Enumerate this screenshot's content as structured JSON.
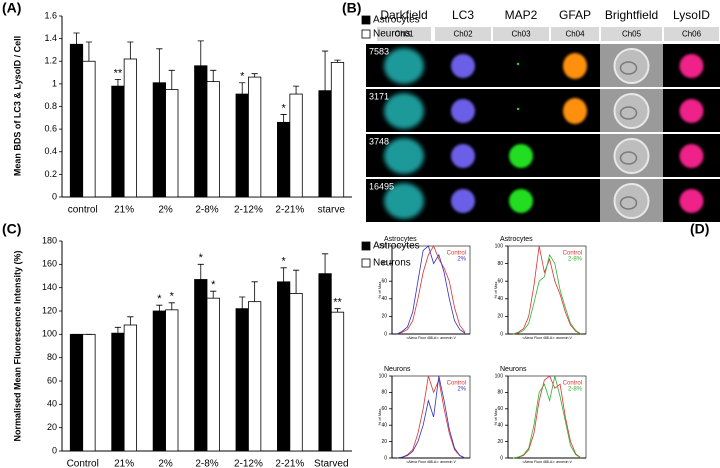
{
  "panel_labels": [
    "(A)",
    "(B)",
    "(C)",
    "(D)"
  ],
  "image_panel": {
    "columns": [
      "Darkfield",
      "LC3",
      "MAP2",
      "GFAP",
      "Brightfield",
      "LysoID"
    ],
    "channels": [
      "Ch01",
      "Ch02",
      "Ch03",
      "Ch04",
      "Ch05",
      "Ch06"
    ],
    "rows": [
      "7583",
      "3171",
      "3748",
      "16495"
    ]
  },
  "chart_data": [
    {
      "type": "bar",
      "ylabel": "Mean BDS of LC3 & LysoID / Cell",
      "categories": [
        "control",
        "21%",
        "2%",
        "2-8%",
        "2-12%",
        "2-21%",
        "starve"
      ],
      "series": [
        {
          "name": "Astrocytes",
          "color": "#000000",
          "values": [
            1.35,
            0.98,
            1.01,
            1.16,
            0.91,
            0.66,
            0.94
          ],
          "errors": [
            0.1,
            0.06,
            0.3,
            0.22,
            0.1,
            0.07,
            0.35
          ],
          "significance": [
            null,
            "**",
            null,
            null,
            "*",
            "*",
            null
          ]
        },
        {
          "name": "Neurons",
          "color": "#ffffff",
          "values": [
            1.2,
            1.22,
            0.95,
            1.02,
            1.06,
            0.91,
            1.19
          ],
          "errors": [
            0.17,
            0.15,
            0.17,
            0.1,
            0.03,
            0.07,
            0.02
          ],
          "significance": [
            null,
            null,
            null,
            null,
            null,
            null,
            null
          ]
        }
      ],
      "ylim": [
        0,
        1.6
      ],
      "yticks": [
        0,
        0.2,
        0.4,
        0.6,
        0.8,
        1,
        1.2,
        1.4,
        1.6
      ]
    },
    {
      "type": "bar",
      "ylabel": "Normalised Mean Fluorescence Intensity (%)",
      "categories": [
        "Control",
        "21%",
        "2%",
        "2-8%",
        "2-12%",
        "2-21%",
        "Starved"
      ],
      "series": [
        {
          "name": "Astrocytes",
          "color": "#000000",
          "values": [
            100,
            101,
            120,
            147,
            122,
            145,
            152
          ],
          "errors": [
            0,
            5,
            5,
            13,
            10,
            12,
            17
          ],
          "significance": [
            null,
            null,
            "*",
            "*",
            null,
            "*",
            null
          ]
        },
        {
          "name": "Neurons",
          "color": "#ffffff",
          "values": [
            100,
            108,
            121,
            131,
            128,
            135,
            119
          ],
          "errors": [
            0,
            7,
            6,
            6,
            17,
            20,
            3
          ],
          "significance": [
            null,
            null,
            "*",
            "*",
            null,
            null,
            "**"
          ]
        }
      ],
      "ylim": [
        0,
        180
      ],
      "yticks": [
        0,
        20,
        40,
        60,
        80,
        100,
        120,
        140,
        160,
        180
      ]
    },
    {
      "type": "line",
      "title": "Astrocytes",
      "ylabel": "% of Max",
      "xlabel": "<Alexa Fluor 488-A>: annexin V",
      "series": [
        {
          "name": "Control",
          "color": "#e03030",
          "values": [
            0,
            2,
            5,
            15,
            40,
            70,
            90,
            100,
            85,
            75,
            60,
            30,
            10,
            2
          ]
        },
        {
          "name": "2%",
          "color": "#3030c0",
          "values": [
            0,
            3,
            8,
            25,
            60,
            95,
            100,
            80,
            90,
            70,
            40,
            15,
            5,
            1
          ]
        }
      ],
      "ylim": [
        0,
        100
      ],
      "yticks": [
        0,
        20,
        40,
        60,
        80,
        100
      ]
    },
    {
      "type": "line",
      "title": "Astrocytes",
      "ylabel": "% of Max",
      "xlabel": "<Alexa Fluor 488-A>: annexin V",
      "series": [
        {
          "name": "Control",
          "color": "#e03030",
          "values": [
            0,
            2,
            6,
            20,
            55,
            100,
            70,
            85,
            60,
            45,
            25,
            10,
            3,
            0
          ]
        },
        {
          "name": "2-8%",
          "color": "#30b030",
          "values": [
            0,
            1,
            4,
            12,
            35,
            60,
            65,
            90,
            80,
            50,
            30,
            12,
            4,
            0
          ]
        }
      ],
      "ylim": [
        0,
        100
      ],
      "yticks": [
        0,
        20,
        40,
        60,
        80,
        100
      ]
    },
    {
      "type": "line",
      "title": "Neurons",
      "ylabel": "% of Max",
      "xlabel": "<Alexa Fluor 488-A>: annexin V",
      "series": [
        {
          "name": "Control",
          "color": "#e03030",
          "values": [
            0,
            1,
            4,
            10,
            30,
            60,
            100,
            80,
            95,
            60,
            30,
            10,
            3,
            0
          ]
        },
        {
          "name": "2%",
          "color": "#3030c0",
          "values": [
            0,
            1,
            3,
            8,
            20,
            40,
            70,
            50,
            100,
            70,
            35,
            12,
            3,
            0
          ]
        }
      ],
      "ylim": [
        0,
        100
      ],
      "yticks": [
        0,
        20,
        40,
        60,
        80,
        100
      ]
    },
    {
      "type": "line",
      "title": "Neurons",
      "ylabel": "% of Max",
      "xlabel": "<Alexa Fluor 488-A>: annexin V",
      "series": [
        {
          "name": "Control",
          "color": "#e03030",
          "values": [
            0,
            1,
            3,
            10,
            30,
            70,
            95,
            100,
            85,
            90,
            50,
            20,
            5,
            0
          ]
        },
        {
          "name": "2-8%",
          "color": "#30b030",
          "values": [
            0,
            1,
            4,
            12,
            40,
            80,
            90,
            70,
            100,
            75,
            45,
            15,
            4,
            0
          ]
        }
      ],
      "ylim": [
        0,
        100
      ],
      "yticks": [
        0,
        20,
        40,
        60,
        80,
        100
      ]
    }
  ]
}
